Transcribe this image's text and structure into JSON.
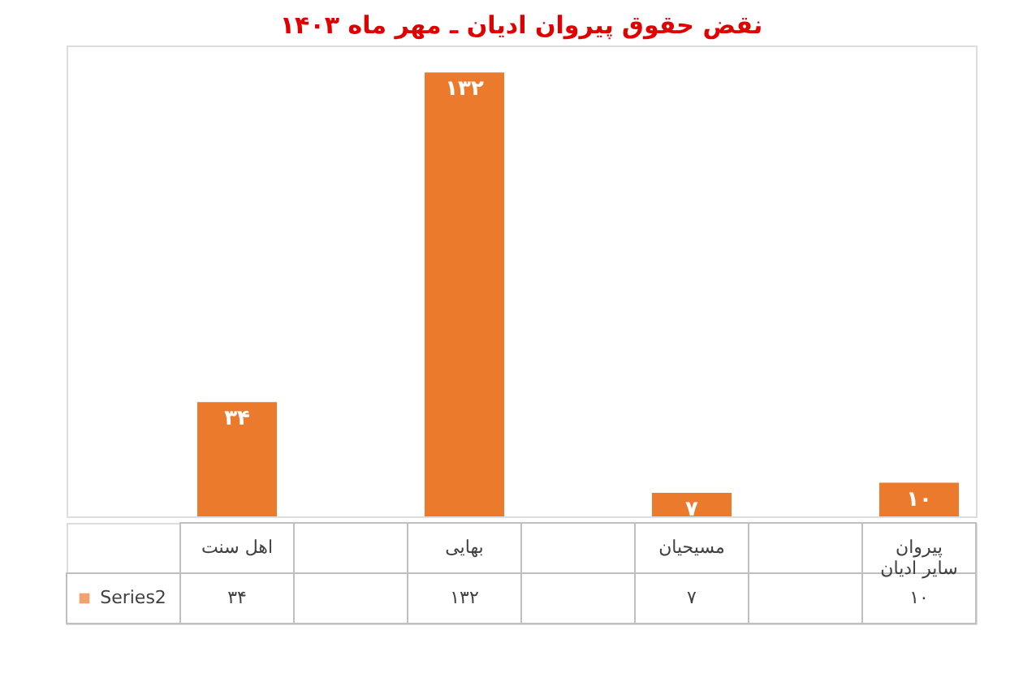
{
  "chart_data": {
    "type": "bar",
    "title": "نقض حقوق پیروان ادیان ـ مهر ماه ۱۴۰۳",
    "categories": [
      "اهل سنت",
      null,
      "بهایی",
      null,
      "مسیحیان",
      null,
      "پیروان سایر ادیان"
    ],
    "series": [
      {
        "name": "Series2",
        "color": "#ec7a2c",
        "values": [
          34,
          null,
          132,
          null,
          7,
          null,
          10
        ],
        "value_labels": [
          "۳۴",
          null,
          "۱۳۲",
          null,
          "۷",
          null,
          "۱۰"
        ]
      }
    ],
    "grid": false,
    "legend": "bottom"
  }
}
